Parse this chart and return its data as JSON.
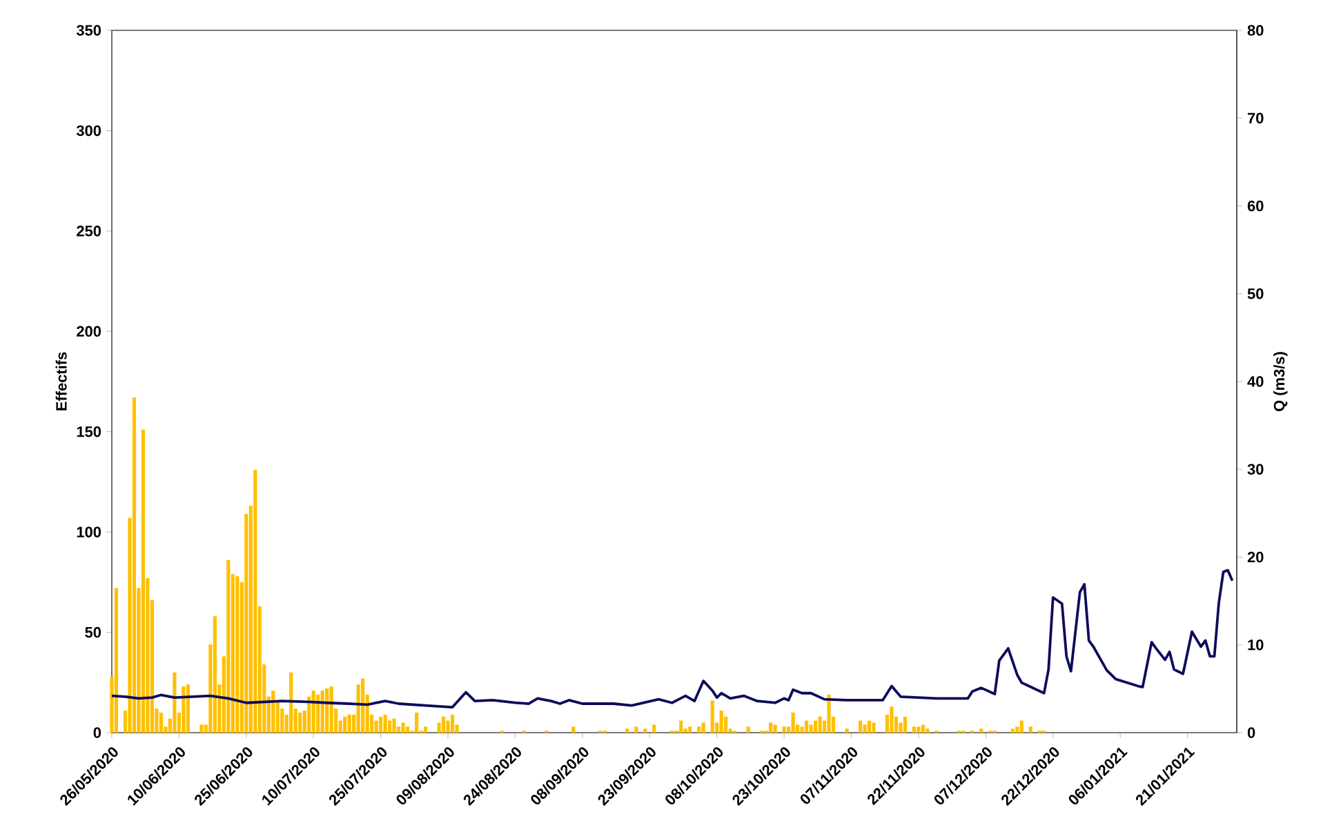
{
  "chart_data": {
    "type": "bar",
    "ylabel": "Effectifs",
    "y2label": "Q (m3/s)",
    "xlim": [
      "2020-05-26",
      "2021-02-01"
    ],
    "xticks": [
      {
        "value": "2020-05-26",
        "label": "26/05/2020"
      },
      {
        "value": "2020-06-10",
        "label": "10/06/2020"
      },
      {
        "value": "2020-06-25",
        "label": "25/06/2020"
      },
      {
        "value": "2020-07-10",
        "label": "10/07/2020"
      },
      {
        "value": "2020-07-25",
        "label": "25/07/2020"
      },
      {
        "value": "2020-08-09",
        "label": "09/08/2020"
      },
      {
        "value": "2020-08-24",
        "label": "24/08/2020"
      },
      {
        "value": "2020-09-08",
        "label": "08/09/2020"
      },
      {
        "value": "2020-09-23",
        "label": "23/09/2020"
      },
      {
        "value": "2020-10-08",
        "label": "08/10/2020"
      },
      {
        "value": "2020-10-23",
        "label": "23/10/2020"
      },
      {
        "value": "2020-11-07",
        "label": "07/11/2020"
      },
      {
        "value": "2020-11-22",
        "label": "22/11/2020"
      },
      {
        "value": "2020-12-07",
        "label": "07/12/2020"
      },
      {
        "value": "2020-12-22",
        "label": "22/12/2020"
      },
      {
        "value": "2021-01-06",
        "label": "06/01/2021"
      },
      {
        "value": "2021-01-21",
        "label": "21/01/2021"
      }
    ],
    "ylim": [
      0,
      350
    ],
    "yticks": [
      0,
      50,
      100,
      150,
      200,
      250,
      300,
      350
    ],
    "y2lim": [
      0,
      80
    ],
    "y2ticks": [
      0,
      10,
      20,
      30,
      40,
      50,
      60,
      70,
      80
    ],
    "series": [
      {
        "color": "#ffc000",
        "x": [
          "2020-05-26",
          "2020-05-27",
          "2020-05-29",
          "2020-05-30",
          "2020-05-31",
          "2020-06-01",
          "2020-06-02",
          "2020-06-03",
          "2020-06-04",
          "2020-06-05",
          "2020-06-06",
          "2020-06-07",
          "2020-06-08",
          "2020-06-09",
          "2020-06-10",
          "2020-06-11",
          "2020-06-12",
          "2020-06-15",
          "2020-06-16",
          "2020-06-17",
          "2020-06-18",
          "2020-06-19",
          "2020-06-20",
          "2020-06-21",
          "2020-06-22",
          "2020-06-23",
          "2020-06-24",
          "2020-06-25",
          "2020-06-26",
          "2020-06-27",
          "2020-06-28",
          "2020-06-29",
          "2020-06-30",
          "2020-07-01",
          "2020-07-02",
          "2020-07-03",
          "2020-07-04",
          "2020-07-05",
          "2020-07-06",
          "2020-07-07",
          "2020-07-08",
          "2020-07-09",
          "2020-07-10",
          "2020-07-11",
          "2020-07-12",
          "2020-07-13",
          "2020-07-14",
          "2020-07-15",
          "2020-07-16",
          "2020-07-17",
          "2020-07-18",
          "2020-07-19",
          "2020-07-20",
          "2020-07-21",
          "2020-07-22",
          "2020-07-23",
          "2020-07-24",
          "2020-07-25",
          "2020-07-26",
          "2020-07-27",
          "2020-07-28",
          "2020-07-29",
          "2020-07-30",
          "2020-07-31",
          "2020-08-01",
          "2020-08-02",
          "2020-08-03",
          "2020-08-04",
          "2020-08-07",
          "2020-08-08",
          "2020-08-09",
          "2020-08-10",
          "2020-08-11",
          "2020-08-21",
          "2020-08-26",
          "2020-08-31",
          "2020-09-06",
          "2020-09-12",
          "2020-09-13",
          "2020-09-18",
          "2020-09-20",
          "2020-09-22",
          "2020-09-24",
          "2020-09-28",
          "2020-09-29",
          "2020-09-30",
          "2020-10-01",
          "2020-10-02",
          "2020-10-04",
          "2020-10-05",
          "2020-10-07",
          "2020-10-08",
          "2020-10-09",
          "2020-10-10",
          "2020-10-11",
          "2020-10-12",
          "2020-10-15",
          "2020-10-18",
          "2020-10-19",
          "2020-10-20",
          "2020-10-21",
          "2020-10-23",
          "2020-10-24",
          "2020-10-25",
          "2020-10-26",
          "2020-10-27",
          "2020-10-28",
          "2020-10-29",
          "2020-10-30",
          "2020-10-31",
          "2020-11-01",
          "2020-11-02",
          "2020-11-03",
          "2020-11-06",
          "2020-11-09",
          "2020-11-10",
          "2020-11-11",
          "2020-11-12",
          "2020-11-15",
          "2020-11-16",
          "2020-11-17",
          "2020-11-18",
          "2020-11-19",
          "2020-11-21",
          "2020-11-22",
          "2020-11-23",
          "2020-11-24",
          "2020-11-26",
          "2020-12-01",
          "2020-12-02",
          "2020-12-04",
          "2020-12-06",
          "2020-12-08",
          "2020-12-09",
          "2020-12-13",
          "2020-12-14",
          "2020-12-15",
          "2020-12-17",
          "2020-12-19",
          "2020-12-20"
        ],
        "values": [
          28,
          72,
          11,
          107,
          167,
          72,
          151,
          77,
          66,
          12,
          10,
          3,
          7,
          30,
          10,
          23,
          24,
          4,
          4,
          44,
          58,
          24,
          38,
          86,
          79,
          78,
          75,
          109,
          113,
          131,
          63,
          34,
          18,
          21,
          16,
          12,
          9,
          30,
          12,
          10,
          11,
          18,
          21,
          19,
          21,
          22,
          23,
          12,
          6,
          8,
          9,
          9,
          24,
          27,
          19,
          9,
          6,
          8,
          9,
          6,
          7,
          3,
          5,
          3,
          1,
          10,
          1,
          3,
          5,
          8,
          6,
          9,
          4,
          1,
          1,
          1,
          3,
          1,
          1,
          2,
          3,
          2,
          4,
          1,
          1,
          6,
          2,
          3,
          3,
          5,
          16,
          5,
          11,
          8,
          2,
          1,
          3,
          1,
          1,
          5,
          4,
          3,
          3,
          10,
          4,
          3,
          6,
          4,
          6,
          8,
          6,
          19,
          8,
          2,
          6,
          4,
          6,
          5,
          9,
          13,
          8,
          5,
          8,
          3,
          3,
          4,
          2,
          1,
          1,
          1,
          1,
          2,
          1,
          1,
          2,
          3,
          6,
          3,
          1,
          1
        ]
      },
      {
        "type": "line",
        "axis": "y2",
        "color": "#0c0c5c",
        "x": [
          "2020-05-26",
          "2020-05-29",
          "2020-06-01",
          "2020-06-04",
          "2020-06-06",
          "2020-06-09",
          "2020-06-13",
          "2020-06-17",
          "2020-06-21",
          "2020-06-25",
          "2020-06-29",
          "2020-07-03",
          "2020-07-09",
          "2020-07-13",
          "2020-07-18",
          "2020-07-22",
          "2020-07-26",
          "2020-07-29",
          "2020-08-04",
          "2020-08-10",
          "2020-08-13",
          "2020-08-15",
          "2020-08-19",
          "2020-08-24",
          "2020-08-27",
          "2020-08-29",
          "2020-09-01",
          "2020-09-03",
          "2020-09-05",
          "2020-09-08",
          "2020-09-15",
          "2020-09-19",
          "2020-09-25",
          "2020-09-28",
          "2020-10-01",
          "2020-10-03",
          "2020-10-05",
          "2020-10-07",
          "2020-10-08",
          "2020-10-09",
          "2020-10-11",
          "2020-10-14",
          "2020-10-17",
          "2020-10-21",
          "2020-10-23",
          "2020-10-24",
          "2020-10-25",
          "2020-10-27",
          "2020-10-29",
          "2020-11-01",
          "2020-11-06",
          "2020-11-14",
          "2020-11-16",
          "2020-11-18",
          "2020-11-26",
          "2020-12-03",
          "2020-12-04",
          "2020-12-06",
          "2020-12-09",
          "2020-12-10",
          "2020-12-12",
          "2020-12-14",
          "2020-12-15",
          "2020-12-20",
          "2020-12-21",
          "2020-12-22",
          "2020-12-24",
          "2020-12-25",
          "2020-12-26",
          "2020-12-28",
          "2020-12-29",
          "2020-12-30",
          "2020-12-31",
          "2021-01-03",
          "2021-01-05",
          "2021-01-10",
          "2021-01-11",
          "2021-01-13",
          "2021-01-14",
          "2021-01-16",
          "2021-01-17",
          "2021-01-18",
          "2021-01-20",
          "2021-01-22",
          "2021-01-24",
          "2021-01-25",
          "2021-01-26",
          "2021-01-27",
          "2021-01-28",
          "2021-01-29",
          "2021-01-30",
          "2021-01-31"
        ],
        "values": [
          4.2,
          4.1,
          3.9,
          4.0,
          4.3,
          4.0,
          4.1,
          4.2,
          3.9,
          3.4,
          3.5,
          3.6,
          3.5,
          3.4,
          3.3,
          3.2,
          3.6,
          3.3,
          3.1,
          2.9,
          4.6,
          3.6,
          3.7,
          3.4,
          3.3,
          3.9,
          3.6,
          3.3,
          3.7,
          3.3,
          3.3,
          3.1,
          3.8,
          3.4,
          4.2,
          3.6,
          5.9,
          4.8,
          4.0,
          4.5,
          3.9,
          4.2,
          3.6,
          3.4,
          3.9,
          3.7,
          4.9,
          4.5,
          4.5,
          3.8,
          3.7,
          3.7,
          5.3,
          4.1,
          3.9,
          3.9,
          4.7,
          5.1,
          4.4,
          8.2,
          9.6,
          6.6,
          5.7,
          4.5,
          7.2,
          15.4,
          14.7,
          8.7,
          7.0,
          16.0,
          16.9,
          10.5,
          9.8,
          7.1,
          6.1,
          5.3,
          5.2,
          10.3,
          9.6,
          8.3,
          9.2,
          7.2,
          6.7,
          11.5,
          9.8,
          10.5,
          8.7,
          8.7,
          14.8,
          18.3,
          18.5,
          17.3
        ]
      }
    ]
  }
}
